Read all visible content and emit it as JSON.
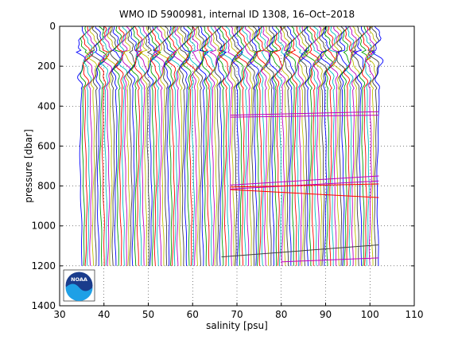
{
  "chart_data": {
    "type": "line",
    "title": "WMO ID 5900981, internal ID 1308, 16–Oct–2018",
    "xlabel": "salinity [psu]",
    "ylabel": "pressure [dbar]",
    "xlim": [
      30,
      110
    ],
    "ylim": [
      0,
      1400
    ],
    "y_reversed": true,
    "grid": true,
    "grid_style": "dotted",
    "x_ticks": [
      30,
      40,
      50,
      60,
      70,
      80,
      90,
      100,
      110
    ],
    "y_ticks": [
      0,
      200,
      400,
      600,
      800,
      1000,
      1200,
      1400
    ],
    "series": [
      {
        "description_type": "stacked-profiles",
        "x_range": [
          34.8,
          103.3
        ],
        "pressure_range": [
          0,
          1200
        ],
        "profile_count": 120,
        "palette": [
          "#0000ff",
          "#00a000",
          "#ff0000",
          "#00bfbf",
          "#bf00bf",
          "#bfbf00",
          "#404040"
        ]
      },
      {
        "x": [
          68.5,
          102.0
        ],
        "y": [
          445,
          428
        ],
        "color": "#bf00bf"
      },
      {
        "x": [
          68.5,
          102.0
        ],
        "y": [
          455,
          445
        ],
        "color": "#bf00bf"
      },
      {
        "x": [
          68.5,
          102.0
        ],
        "y": [
          795,
          750
        ],
        "color": "#bf00bf"
      },
      {
        "x": [
          68.5,
          102.0
        ],
        "y": [
          815,
          775
        ],
        "color": "#bf00bf"
      },
      {
        "x": [
          68.5,
          102.0
        ],
        "y": [
          805,
          790
        ],
        "color": "#ff0000"
      },
      {
        "x": [
          68.5,
          102.0
        ],
        "y": [
          818,
          858
        ],
        "color": "#ff0000"
      },
      {
        "x": [
          66.5,
          102.0
        ],
        "y": [
          1155,
          1095
        ],
        "color": "#404040"
      },
      {
        "x": [
          80.0,
          102.0
        ],
        "y": [
          1180,
          1160
        ],
        "color": "#bf00bf"
      }
    ]
  },
  "logo": {
    "text": "NOAA",
    "colors": [
      "#1a3c8c",
      "#1ea0e6",
      "#ffffff"
    ]
  }
}
